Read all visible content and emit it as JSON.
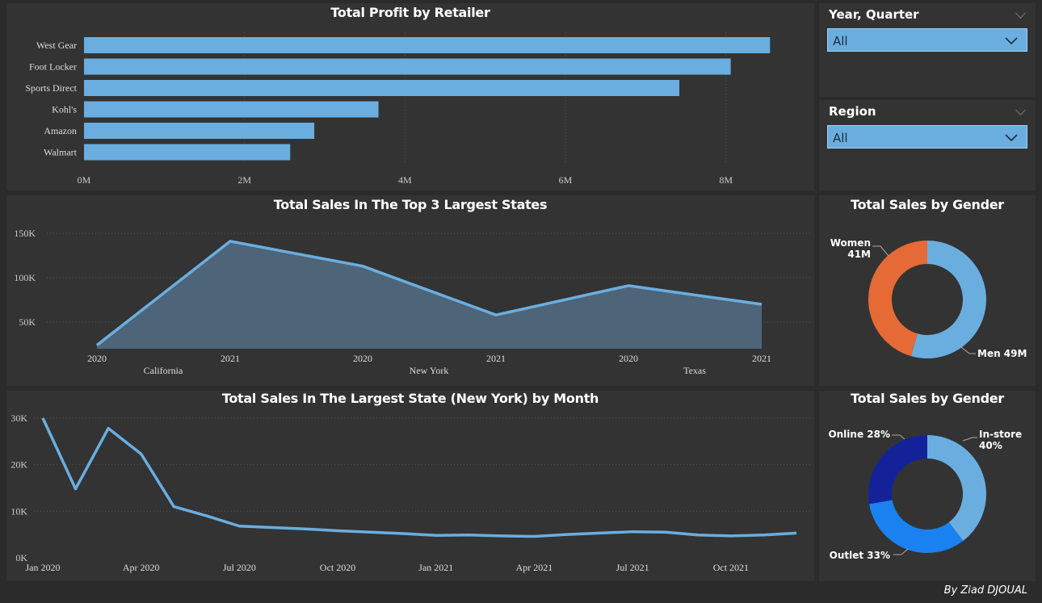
{
  "filters": {
    "year_quarter": {
      "title": "Year, Quarter",
      "value": "All"
    },
    "region": {
      "title": "Region",
      "value": "All"
    }
  },
  "credit": "By Ziad DJOUAL",
  "colors": {
    "bar": "#6aaee0",
    "women": "#e56a35",
    "men": "#6aaee0",
    "instore": "#6aaee0",
    "outlet": "#1a82f0",
    "online": "#14229a"
  },
  "chart_data": [
    {
      "id": "profit",
      "type": "bar",
      "orientation": "horizontal",
      "title": "Total Profit by Retailer",
      "categories": [
        "West Gear",
        "Foot Locker",
        "Sports Direct",
        "Kohl's",
        "Amazon",
        "Walmart"
      ],
      "values": [
        8.55,
        8.06,
        7.42,
        3.67,
        2.87,
        2.57
      ],
      "unit": "M",
      "xlim": [
        0,
        9
      ],
      "ticks": [
        "0M",
        "2M",
        "4M",
        "6M",
        "8M"
      ],
      "grid": true
    },
    {
      "id": "states",
      "type": "area",
      "title": "Total Sales In The Top 3 Largest States",
      "x_years": [
        "2020",
        "2021",
        "2020",
        "2021",
        "2020",
        "2021"
      ],
      "x_groups": [
        "California",
        "New York",
        "Texas"
      ],
      "values": [
        24000,
        141000,
        113000,
        58000,
        91000,
        70000
      ],
      "ylim": [
        20000,
        160000
      ],
      "yticks": [
        "50K",
        "100K",
        "150K"
      ],
      "grid": true
    },
    {
      "id": "months",
      "type": "line",
      "title": "Total Sales In The Largest State (New York) by Month",
      "x": [
        "Jan 2020",
        "Feb 2020",
        "Mar 2020",
        "Apr 2020",
        "May 2020",
        "Jun 2020",
        "Jul 2020",
        "Aug 2020",
        "Sep 2020",
        "Oct 2020",
        "Nov 2020",
        "Dec 2020",
        "Jan 2021",
        "Feb 2021",
        "Mar 2021",
        "Apr 2021",
        "May 2021",
        "Jun 2021",
        "Jul 2021",
        "Aug 2021",
        "Sep 2021",
        "Oct 2021",
        "Nov 2021",
        "Dec 2021"
      ],
      "values": [
        30000,
        14800,
        27800,
        22300,
        11000,
        9000,
        6800,
        6500,
        6200,
        5800,
        5500,
        5200,
        4800,
        4900,
        4700,
        4600,
        5000,
        5300,
        5600,
        5500,
        4900,
        4700,
        4900,
        5300
      ],
      "xticks": [
        "Jan 2020",
        "Apr 2020",
        "Jul 2020",
        "Oct 2020",
        "Jan 2021",
        "Apr 2021",
        "Jul 2021",
        "Oct 2021"
      ],
      "ylim": [
        0,
        31000
      ],
      "yticks": [
        "0K",
        "10K",
        "20K",
        "30K"
      ],
      "grid": true
    },
    {
      "id": "gender",
      "type": "pie",
      "donut": true,
      "title": "Total Sales by Gender",
      "slices": [
        {
          "name": "Men",
          "value": 49,
          "label": "Men 49M"
        },
        {
          "name": "Women",
          "value": 41,
          "label": "Women 41M"
        }
      ]
    },
    {
      "id": "channel",
      "type": "pie",
      "donut": true,
      "title": "Total Sales by Gender",
      "slices": [
        {
          "name": "In-store",
          "value": 40,
          "label": "In-store 40%"
        },
        {
          "name": "Outlet",
          "value": 33,
          "label": "Outlet 33%"
        },
        {
          "name": "Online",
          "value": 28,
          "label": "Online 28%"
        }
      ]
    }
  ]
}
